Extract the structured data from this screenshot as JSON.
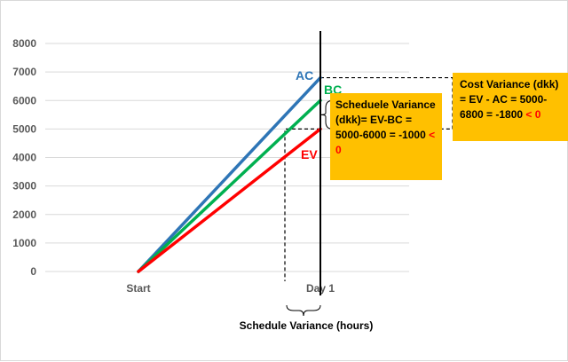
{
  "chart_data": {
    "type": "line",
    "categories": [
      "Start",
      "Day 1"
    ],
    "ylim": [
      0,
      8000
    ],
    "yticks": [
      0,
      1000,
      2000,
      3000,
      4000,
      5000,
      6000,
      7000,
      8000
    ],
    "grid": true,
    "series": [
      {
        "name": "AC",
        "values": [
          0,
          6800
        ],
        "color": "#2e75b6"
      },
      {
        "name": "BC",
        "values": [
          0,
          6000
        ],
        "color": "#00b050"
      },
      {
        "name": "EV",
        "values": [
          0,
          5000
        ],
        "color": "#ff0000"
      }
    ],
    "annotations": {
      "schedule_variance": {
        "text": "Scheduele Variance (dkk)= EV-BC = 5000-6000 = -1000",
        "suffix": "< 0"
      },
      "cost_variance": {
        "text": "Cost Variance (dkk) = EV - AC = 5000-6800 = -1800",
        "suffix": "< 0"
      },
      "schedule_variance_hours": "Schedule Variance (hours)"
    }
  },
  "colors": {
    "accent_fill": "#ffc000",
    "negative_text": "#ff0000",
    "grid": "#d9d9d9",
    "day_line": "#000000"
  }
}
